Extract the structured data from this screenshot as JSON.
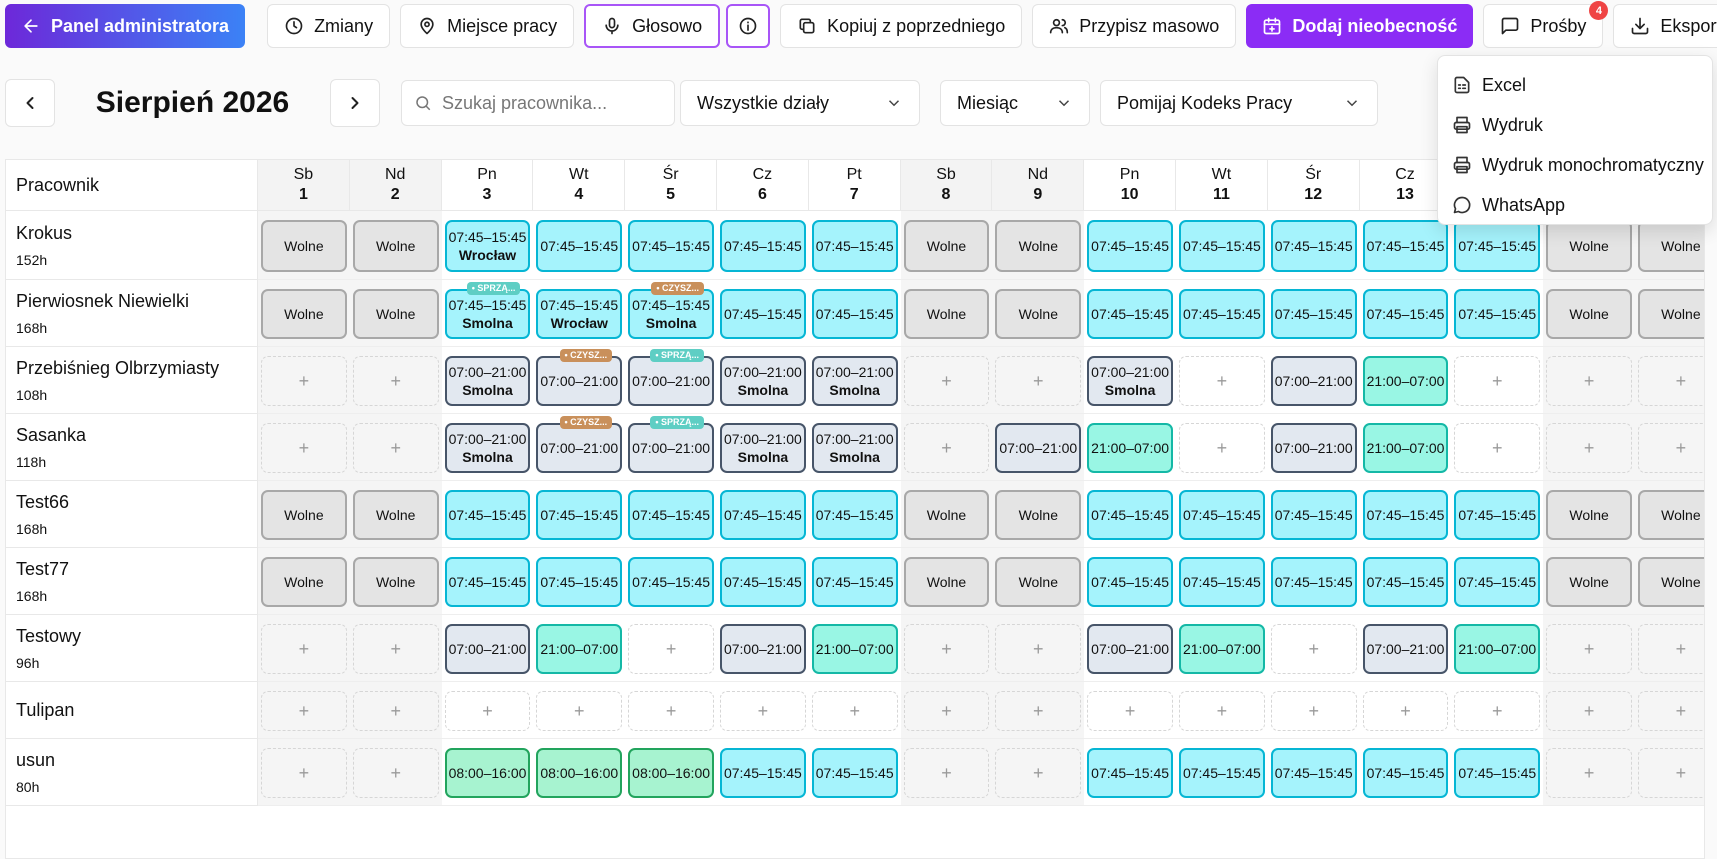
{
  "toolbar": {
    "admin_panel": "Panel administratora",
    "shifts": "Zmiany",
    "workplace": "Miejsce pracy",
    "voice": "Głosowo",
    "copy_previous": "Kopiuj z poprzedniego",
    "bulk_assign": "Przypisz masowo",
    "add_absence": "Dodaj nieobecność",
    "requests": "Prośby",
    "requests_count": "4",
    "export": "Eksport"
  },
  "export_menu": {
    "items": [
      "Excel",
      "Wydruk",
      "Wydruk monochromatyczny",
      "WhatsApp"
    ]
  },
  "filters": {
    "month_title": "Sierpień 2026",
    "search_placeholder": "Szukaj pracownika...",
    "department": "Wszystkie działy",
    "view": "Miesiąc",
    "labor_code": "Pomijaj Kodeks Pracy"
  },
  "schedule": {
    "employee_header": "Pracownik",
    "days": [
      {
        "wd": "Sb",
        "d": "1",
        "we": true
      },
      {
        "wd": "Nd",
        "d": "2",
        "we": true
      },
      {
        "wd": "Pn",
        "d": "3",
        "we": false
      },
      {
        "wd": "Wt",
        "d": "4",
        "we": false
      },
      {
        "wd": "Śr",
        "d": "5",
        "we": false
      },
      {
        "wd": "Cz",
        "d": "6",
        "we": false
      },
      {
        "wd": "Pt",
        "d": "7",
        "we": false
      },
      {
        "wd": "Sb",
        "d": "8",
        "we": true
      },
      {
        "wd": "Nd",
        "d": "9",
        "we": true
      },
      {
        "wd": "Pn",
        "d": "10",
        "we": false
      },
      {
        "wd": "Wt",
        "d": "11",
        "we": false
      },
      {
        "wd": "Śr",
        "d": "12",
        "we": false
      },
      {
        "wd": "Cz",
        "d": "13",
        "we": false
      },
      {
        "wd": "",
        "d": "",
        "we": false
      },
      {
        "wd": "",
        "d": "",
        "we": true
      },
      {
        "wd": "",
        "d": "",
        "we": true
      }
    ],
    "rows": [
      {
        "name": "Krokus",
        "hours": "152h",
        "cells": [
          {
            "k": "off",
            "t": "Wolne"
          },
          {
            "k": "off",
            "t": "Wolne"
          },
          {
            "k": "cyan",
            "t": "07:45–15:45",
            "loc": "Wrocław"
          },
          {
            "k": "cyan",
            "t": "07:45–15:45"
          },
          {
            "k": "cyan",
            "t": "07:45–15:45"
          },
          {
            "k": "cyan",
            "t": "07:45–15:45"
          },
          {
            "k": "cyan",
            "t": "07:45–15:45"
          },
          {
            "k": "off",
            "t": "Wolne"
          },
          {
            "k": "off",
            "t": "Wolne"
          },
          {
            "k": "cyan",
            "t": "07:45–15:45"
          },
          {
            "k": "cyan",
            "t": "07:45–15:45"
          },
          {
            "k": "cyan",
            "t": "07:45–15:45"
          },
          {
            "k": "cyan",
            "t": "07:45–15:45"
          },
          {
            "k": "cyan",
            "t": "07:45–15:45"
          },
          {
            "k": "off",
            "t": "Wolne"
          },
          {
            "k": "off",
            "t": "Wolne"
          }
        ]
      },
      {
        "name": "Pierwiosnek Niewielki",
        "hours": "168h",
        "cells": [
          {
            "k": "off",
            "t": "Wolne"
          },
          {
            "k": "off",
            "t": "Wolne"
          },
          {
            "k": "cyan",
            "t": "07:45–15:45",
            "loc": "Smolna",
            "tag": "• SPRZĄ...",
            "tagk": "t-sp"
          },
          {
            "k": "cyan",
            "t": "07:45–15:45",
            "loc": "Wrocław"
          },
          {
            "k": "cyan",
            "t": "07:45–15:45",
            "loc": "Smolna",
            "tag": "• CZYSZ...",
            "tagk": "t-cz"
          },
          {
            "k": "cyan",
            "t": "07:45–15:45"
          },
          {
            "k": "cyan",
            "t": "07:45–15:45"
          },
          {
            "k": "off",
            "t": "Wolne"
          },
          {
            "k": "off",
            "t": "Wolne"
          },
          {
            "k": "cyan",
            "t": "07:45–15:45"
          },
          {
            "k": "cyan",
            "t": "07:45–15:45"
          },
          {
            "k": "cyan",
            "t": "07:45–15:45"
          },
          {
            "k": "cyan",
            "t": "07:45–15:45"
          },
          {
            "k": "cyan",
            "t": "07:45–15:45"
          },
          {
            "k": "off",
            "t": "Wolne"
          },
          {
            "k": "off",
            "t": "Wolne"
          }
        ]
      },
      {
        "name": "Przebiśnieg Olbrzymiasty",
        "hours": "108h",
        "cells": [
          {
            "k": "empty",
            "t": "+"
          },
          {
            "k": "empty",
            "t": "+"
          },
          {
            "k": "slate",
            "t": "07:00–21:00",
            "loc": "Smolna"
          },
          {
            "k": "slate",
            "t": "07:00–21:00",
            "tag": "• CZYSZ...",
            "tagk": "t-cz"
          },
          {
            "k": "slate",
            "t": "07:00–21:00",
            "tag": "• SPRZĄ...",
            "tagk": "t-sp"
          },
          {
            "k": "slate",
            "t": "07:00–21:00",
            "loc": "Smolna"
          },
          {
            "k": "slate",
            "t": "07:00–21:00",
            "loc": "Smolna"
          },
          {
            "k": "empty",
            "t": "+"
          },
          {
            "k": "empty",
            "t": "+"
          },
          {
            "k": "slate",
            "t": "07:00–21:00",
            "loc": "Smolna"
          },
          {
            "k": "empty",
            "t": "+"
          },
          {
            "k": "slate",
            "t": "07:00–21:00"
          },
          {
            "k": "teal",
            "t": "21:00–07:00"
          },
          {
            "k": "empty",
            "t": "+"
          },
          {
            "k": "empty",
            "t": "+"
          },
          {
            "k": "empty",
            "t": "+"
          }
        ]
      },
      {
        "name": "Sasanka",
        "hours": "118h",
        "cells": [
          {
            "k": "empty",
            "t": "+"
          },
          {
            "k": "empty",
            "t": "+"
          },
          {
            "k": "slate",
            "t": "07:00–21:00",
            "loc": "Smolna"
          },
          {
            "k": "slate",
            "t": "07:00–21:00",
            "tag": "• CZYSZ...",
            "tagk": "t-cz"
          },
          {
            "k": "slate",
            "t": "07:00–21:00",
            "tag": "• SPRZĄ...",
            "tagk": "t-sp"
          },
          {
            "k": "slate",
            "t": "07:00–21:00",
            "loc": "Smolna"
          },
          {
            "k": "slate",
            "t": "07:00–21:00",
            "loc": "Smolna"
          },
          {
            "k": "empty",
            "t": "+"
          },
          {
            "k": "slate",
            "t": "07:00–21:00"
          },
          {
            "k": "teal",
            "t": "21:00–07:00"
          },
          {
            "k": "empty",
            "t": "+"
          },
          {
            "k": "slate",
            "t": "07:00–21:00"
          },
          {
            "k": "teal",
            "t": "21:00–07:00"
          },
          {
            "k": "empty",
            "t": "+"
          },
          {
            "k": "empty",
            "t": "+"
          },
          {
            "k": "empty",
            "t": "+"
          }
        ]
      },
      {
        "name": "Test66",
        "hours": "168h",
        "cells": [
          {
            "k": "off",
            "t": "Wolne"
          },
          {
            "k": "off",
            "t": "Wolne"
          },
          {
            "k": "cyan",
            "t": "07:45–15:45"
          },
          {
            "k": "cyan",
            "t": "07:45–15:45"
          },
          {
            "k": "cyan",
            "t": "07:45–15:45"
          },
          {
            "k": "cyan",
            "t": "07:45–15:45"
          },
          {
            "k": "cyan",
            "t": "07:45–15:45"
          },
          {
            "k": "off",
            "t": "Wolne"
          },
          {
            "k": "off",
            "t": "Wolne"
          },
          {
            "k": "cyan",
            "t": "07:45–15:45"
          },
          {
            "k": "cyan",
            "t": "07:45–15:45"
          },
          {
            "k": "cyan",
            "t": "07:45–15:45"
          },
          {
            "k": "cyan",
            "t": "07:45–15:45"
          },
          {
            "k": "cyan",
            "t": "07:45–15:45"
          },
          {
            "k": "off",
            "t": "Wolne"
          },
          {
            "k": "off",
            "t": "Wolne"
          }
        ]
      },
      {
        "name": "Test77",
        "hours": "168h",
        "cells": [
          {
            "k": "off",
            "t": "Wolne"
          },
          {
            "k": "off",
            "t": "Wolne"
          },
          {
            "k": "cyan",
            "t": "07:45–15:45"
          },
          {
            "k": "cyan",
            "t": "07:45–15:45"
          },
          {
            "k": "cyan",
            "t": "07:45–15:45"
          },
          {
            "k": "cyan",
            "t": "07:45–15:45"
          },
          {
            "k": "cyan",
            "t": "07:45–15:45"
          },
          {
            "k": "off",
            "t": "Wolne"
          },
          {
            "k": "off",
            "t": "Wolne"
          },
          {
            "k": "cyan",
            "t": "07:45–15:45"
          },
          {
            "k": "cyan",
            "t": "07:45–15:45"
          },
          {
            "k": "cyan",
            "t": "07:45–15:45"
          },
          {
            "k": "cyan",
            "t": "07:45–15:45"
          },
          {
            "k": "cyan",
            "t": "07:45–15:45"
          },
          {
            "k": "off",
            "t": "Wolne"
          },
          {
            "k": "off",
            "t": "Wolne"
          }
        ]
      },
      {
        "name": "Testowy",
        "hours": "96h",
        "cells": [
          {
            "k": "empty",
            "t": "+"
          },
          {
            "k": "empty",
            "t": "+"
          },
          {
            "k": "slate",
            "t": "07:00–21:00"
          },
          {
            "k": "teal",
            "t": "21:00–07:00"
          },
          {
            "k": "empty",
            "t": "+"
          },
          {
            "k": "slate",
            "t": "07:00–21:00"
          },
          {
            "k": "teal",
            "t": "21:00–07:00"
          },
          {
            "k": "empty",
            "t": "+"
          },
          {
            "k": "empty",
            "t": "+"
          },
          {
            "k": "slate",
            "t": "07:00–21:00"
          },
          {
            "k": "teal",
            "t": "21:00–07:00"
          },
          {
            "k": "empty",
            "t": "+"
          },
          {
            "k": "slate",
            "t": "07:00–21:00"
          },
          {
            "k": "teal",
            "t": "21:00–07:00"
          },
          {
            "k": "empty",
            "t": "+"
          },
          {
            "k": "empty",
            "t": "+"
          }
        ]
      },
      {
        "name": "Tulipan",
        "hours": "",
        "cells": [
          {
            "k": "empty",
            "t": "+"
          },
          {
            "k": "empty",
            "t": "+"
          },
          {
            "k": "empty",
            "t": "+"
          },
          {
            "k": "empty",
            "t": "+"
          },
          {
            "k": "empty",
            "t": "+"
          },
          {
            "k": "empty",
            "t": "+"
          },
          {
            "k": "empty",
            "t": "+"
          },
          {
            "k": "empty",
            "t": "+"
          },
          {
            "k": "empty",
            "t": "+"
          },
          {
            "k": "empty",
            "t": "+"
          },
          {
            "k": "empty",
            "t": "+"
          },
          {
            "k": "empty",
            "t": "+"
          },
          {
            "k": "empty",
            "t": "+"
          },
          {
            "k": "empty",
            "t": "+"
          },
          {
            "k": "empty",
            "t": "+"
          },
          {
            "k": "empty",
            "t": "+"
          }
        ]
      },
      {
        "name": "usun",
        "hours": "80h",
        "cells": [
          {
            "k": "empty",
            "t": "+"
          },
          {
            "k": "empty",
            "t": "+"
          },
          {
            "k": "green",
            "t": "08:00–16:00"
          },
          {
            "k": "green",
            "t": "08:00–16:00"
          },
          {
            "k": "green",
            "t": "08:00–16:00"
          },
          {
            "k": "cyan",
            "t": "07:45–15:45"
          },
          {
            "k": "cyan",
            "t": "07:45–15:45"
          },
          {
            "k": "empty",
            "t": "+"
          },
          {
            "k": "empty",
            "t": "+"
          },
          {
            "k": "cyan",
            "t": "07:45–15:45"
          },
          {
            "k": "cyan",
            "t": "07:45–15:45"
          },
          {
            "k": "cyan",
            "t": "07:45–15:45"
          },
          {
            "k": "cyan",
            "t": "07:45–15:45"
          },
          {
            "k": "cyan",
            "t": "07:45–15:45"
          },
          {
            "k": "empty",
            "t": "+"
          },
          {
            "k": "empty",
            "t": "+"
          }
        ]
      }
    ]
  }
}
